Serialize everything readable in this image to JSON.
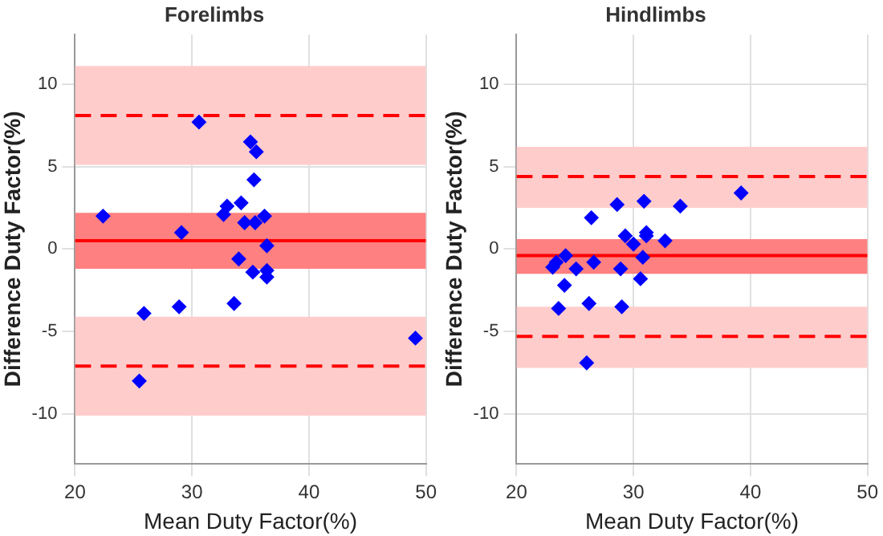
{
  "chart_data": [
    {
      "type": "scatter",
      "title": "Forelimbs",
      "xlabel": "Mean Duty Factor(%)",
      "ylabel": "Difference Duty Factor(%)",
      "xlim": [
        20,
        50
      ],
      "xticks": [
        20,
        30,
        40,
        50
      ],
      "ylim": [
        -13,
        13
      ],
      "yticks": [
        -10,
        -5,
        0,
        5,
        10
      ],
      "grid": true,
      "legend": false,
      "marker": "diamond",
      "series": [
        {
          "color": "#0000ff",
          "x": [
            22.4,
            30.6,
            35.0,
            35.5,
            35.3,
            33.0,
            32.7,
            34.2,
            34.5,
            35.4,
            36.2,
            29.1,
            36.4,
            34.0,
            35.2,
            36.4,
            36.4,
            25.9,
            28.9,
            33.6,
            49.1,
            25.5
          ],
          "values": [
            2.0,
            7.7,
            6.5,
            5.9,
            4.2,
            2.6,
            2.1,
            2.8,
            1.6,
            1.6,
            2.0,
            1.0,
            0.2,
            -0.6,
            -1.4,
            -1.3,
            -1.7,
            -3.9,
            -3.5,
            -3.3,
            -5.4,
            -8.0
          ]
        }
      ],
      "bands": [
        {
          "axis": "y",
          "from": 5.1,
          "to": 11.1,
          "color": "#ffcccc"
        },
        {
          "axis": "y",
          "from": -1.2,
          "to": 2.2,
          "color": "#ff8080"
        },
        {
          "axis": "y",
          "from": -10.1,
          "to": -4.1,
          "color": "#ffcccc"
        }
      ],
      "ref_lines": [
        {
          "axis": "y",
          "value": 0.5,
          "color": "#ff0000",
          "line_style": "solid"
        },
        {
          "axis": "y",
          "value": 8.1,
          "color": "#ff0000",
          "line_style": "dashed"
        },
        {
          "axis": "y",
          "value": -7.1,
          "color": "#ff0000",
          "line_style": "dashed"
        }
      ]
    },
    {
      "type": "scatter",
      "title": "Hindlimbs",
      "xlabel": "Mean Duty Factor(%)",
      "ylabel": "Difference Duty Factor(%)",
      "xlim": [
        20,
        50
      ],
      "xticks": [
        20,
        30,
        40,
        50
      ],
      "ylim": [
        -13,
        13
      ],
      "yticks": [
        -10,
        -5,
        0,
        5,
        10
      ],
      "grid": true,
      "legend": false,
      "marker": "diamond",
      "series": [
        {
          "color": "#0000ff",
          "x": [
            39.2,
            28.6,
            30.9,
            34.0,
            26.4,
            29.3,
            31.1,
            31.1,
            32.7,
            30.0,
            24.2,
            30.8,
            23.4,
            23.1,
            25.1,
            26.6,
            28.9,
            30.6,
            24.1,
            26.2,
            29.0,
            23.6,
            26.0
          ],
          "values": [
            3.4,
            2.7,
            2.9,
            2.6,
            1.9,
            0.8,
            1.0,
            0.8,
            0.5,
            0.3,
            -0.4,
            -0.5,
            -0.8,
            -1.1,
            -1.2,
            -0.8,
            -1.2,
            -1.8,
            -2.2,
            -3.3,
            -3.5,
            -3.6,
            -6.9
          ]
        }
      ],
      "bands": [
        {
          "axis": "y",
          "from": 2.5,
          "to": 6.2,
          "color": "#ffcccc"
        },
        {
          "axis": "y",
          "from": -1.5,
          "to": 0.6,
          "color": "#ff8080"
        },
        {
          "axis": "y",
          "from": -7.2,
          "to": -3.5,
          "color": "#ffcccc"
        }
      ],
      "ref_lines": [
        {
          "axis": "y",
          "value": -0.4,
          "color": "#ff0000",
          "line_style": "solid"
        },
        {
          "axis": "y",
          "value": 4.4,
          "color": "#ff0000",
          "line_style": "dashed"
        },
        {
          "axis": "y",
          "value": -5.3,
          "color": "#ff0000",
          "line_style": "dashed"
        }
      ]
    }
  ]
}
